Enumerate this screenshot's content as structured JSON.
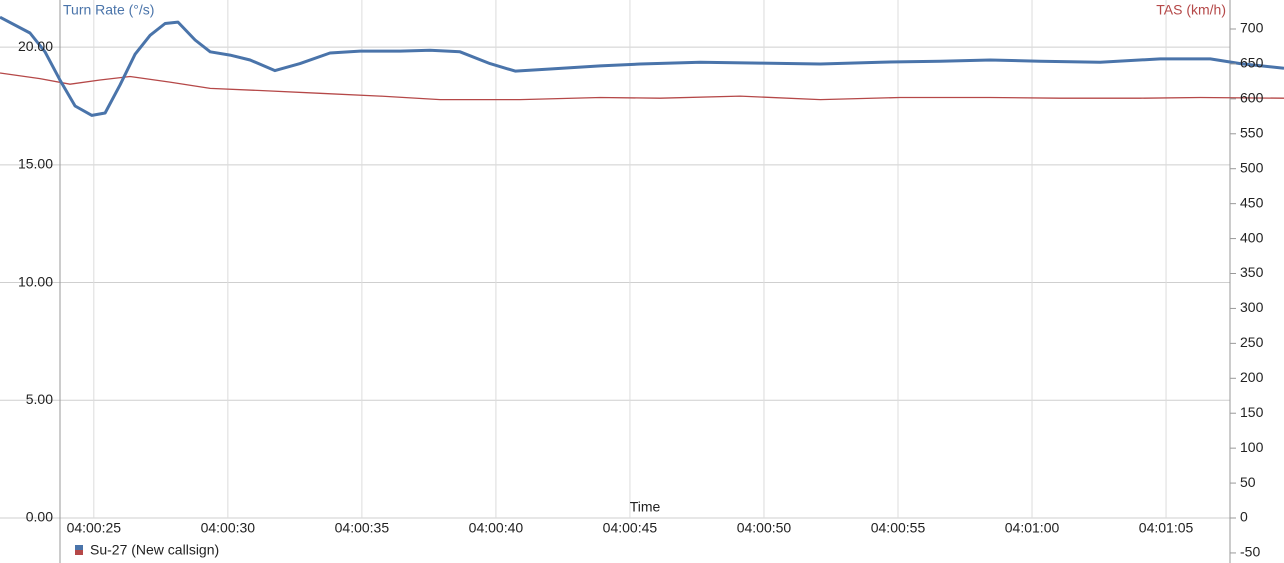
{
  "chart_data": {
    "type": "line",
    "ylabel": "Turn Rate (°/s)",
    "y2label": "TAS (km/h)",
    "xlabel": "Time",
    "legend": "Su-27 (New callsign)",
    "xlim": [
      21.5,
      69.4
    ],
    "xticks": [
      {
        "value": 25,
        "label": "04:00:25"
      },
      {
        "value": 30,
        "label": "04:00:30"
      },
      {
        "value": 35,
        "label": "04:00:35"
      },
      {
        "value": 40,
        "label": "04:00:40"
      },
      {
        "value": 45,
        "label": "04:00:45"
      },
      {
        "value": 50,
        "label": "04:00:50"
      },
      {
        "value": 55,
        "label": "04:00:55"
      },
      {
        "value": 60,
        "label": "04:01:00"
      },
      {
        "value": 65,
        "label": "04:01:05"
      }
    ],
    "ylim": [
      -1.91,
      22.0
    ],
    "yticks": [
      {
        "value": 0,
        "label": "0.00"
      },
      {
        "value": 5,
        "label": "5.00"
      },
      {
        "value": 10,
        "label": "10.00"
      },
      {
        "value": 15,
        "label": "15.00"
      },
      {
        "value": 20,
        "label": "20.00"
      }
    ],
    "y2lim": [
      -64.4,
      741.5
    ],
    "y2ticks": [
      -50,
      0,
      50,
      100,
      150,
      200,
      250,
      300,
      350,
      400,
      450,
      500,
      550,
      600,
      650,
      700
    ],
    "grid": true,
    "series": [
      {
        "color": "#4a74aa",
        "axis": "y",
        "x": [
          21.5,
          22.62,
          23.18,
          23.74,
          24.3,
          24.93,
          25.42,
          25.98,
          26.54,
          27.1,
          27.66,
          28.14,
          28.78,
          29.34,
          30.08,
          30.83,
          31.76,
          32.69,
          33.81,
          34.93,
          36.43,
          37.54,
          38.66,
          39.78,
          40.72,
          42.02,
          43.89,
          45.38,
          47.62,
          49.86,
          52.1,
          54.34,
          56.57,
          58.44,
          60.31,
          62.54,
          64.78,
          66.65,
          67.77,
          69.4
        ],
        "values": [
          21.27,
          20.6,
          19.8,
          18.6,
          17.5,
          17.1,
          17.2,
          18.4,
          19.7,
          20.5,
          21.0,
          21.06,
          20.3,
          19.8,
          19.66,
          19.45,
          19.0,
          19.3,
          19.75,
          19.83,
          19.83,
          19.87,
          19.8,
          19.3,
          18.98,
          19.07,
          19.2,
          19.28,
          19.36,
          19.32,
          19.28,
          19.36,
          19.4,
          19.45,
          19.4,
          19.36,
          19.5,
          19.5,
          19.3,
          19.1
        ]
      },
      {
        "color": "#b54848",
        "axis": "y2",
        "x": [
          21.5,
          22.99,
          24.11,
          25.23,
          26.35,
          27.84,
          29.34,
          31.2,
          33.44,
          35.68,
          37.92,
          40.9,
          43.89,
          46.13,
          49.11,
          52.1,
          55.08,
          58.44,
          61.05,
          64.04,
          66.28,
          69.4
        ],
        "values": [
          637,
          629,
          621,
          627,
          632,
          624,
          615,
          612,
          608,
          604,
          599,
          599,
          602,
          601,
          604,
          599,
          602,
          602,
          601,
          601,
          602,
          601
        ]
      }
    ]
  }
}
